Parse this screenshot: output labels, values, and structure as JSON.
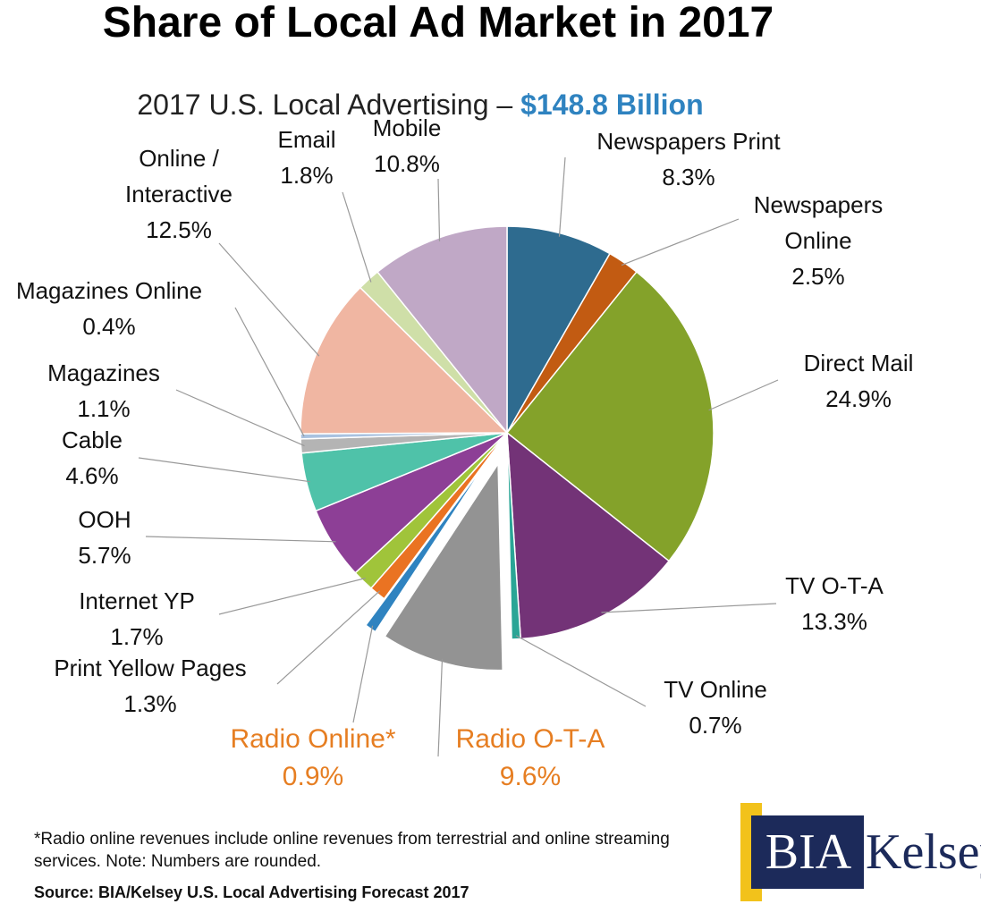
{
  "title": "Share of Local Ad Market in 2017",
  "chart_data": {
    "type": "pie",
    "subtitle_prefix": "2017 U.S. Local Advertising – ",
    "subtitle_highlight": "$148.8 Billion",
    "slices": [
      {
        "label": "Newspapers Print",
        "value": 8.3,
        "display": "8.3%",
        "color": "#2e6b8f"
      },
      {
        "label": "Newspapers Online",
        "value": 2.5,
        "display": "2.5%",
        "color": "#c25b12"
      },
      {
        "label": "Direct Mail",
        "value": 24.9,
        "display": "24.9%",
        "color": "#84a22a"
      },
      {
        "label": "TV O-T-A",
        "value": 13.3,
        "display": "13.3%",
        "color": "#733377"
      },
      {
        "label": "TV Online",
        "value": 0.7,
        "display": "0.7%",
        "color": "#2aa596"
      },
      {
        "label": "Radio O-T-A",
        "value": 9.6,
        "display": "9.6%",
        "color": "#939393",
        "exploded": true
      },
      {
        "label": "Radio Online*",
        "value": 0.9,
        "display": "0.9%",
        "color": "#2f83c0",
        "exploded": true
      },
      {
        "label": "Print Yellow Pages",
        "value": 1.3,
        "display": "1.3%",
        "color": "#ea7322"
      },
      {
        "label": "Internet YP",
        "value": 1.7,
        "display": "1.7%",
        "color": "#a0c43a"
      },
      {
        "label": "OOH",
        "value": 5.7,
        "display": "5.7%",
        "color": "#8d3f96"
      },
      {
        "label": "Cable",
        "value": 4.6,
        "display": "4.6%",
        "color": "#4fc2a9"
      },
      {
        "label": "Magazines",
        "value": 1.1,
        "display": "1.1%",
        "color": "#b4b4b4"
      },
      {
        "label": "Magazines Online",
        "value": 0.4,
        "display": "0.4%",
        "color": "#a9c2e0"
      },
      {
        "label": "Online / Interactive",
        "value": 12.5,
        "display": "12.5%",
        "color": "#f0b6a2"
      },
      {
        "label": "Email",
        "value": 1.8,
        "display": "1.8%",
        "color": "#cfdfa8"
      },
      {
        "label": "Mobile",
        "value": 10.8,
        "display": "10.8%",
        "color": "#c0a8c6"
      }
    ],
    "highlight_labels": [
      "Radio Online*",
      "Radio O-T-A"
    ],
    "highlight_color": "#e67e22",
    "subtitle_color": "#2f83c0"
  },
  "footnote": "*Radio online revenues include online revenues from terrestrial and online streaming services. Note: Numbers are rounded.",
  "source": "Source: BIA/Kelsey U.S. Local Advertising Forecast 2017",
  "logo": {
    "part1": "BIA",
    "part2": "Kelsey"
  }
}
